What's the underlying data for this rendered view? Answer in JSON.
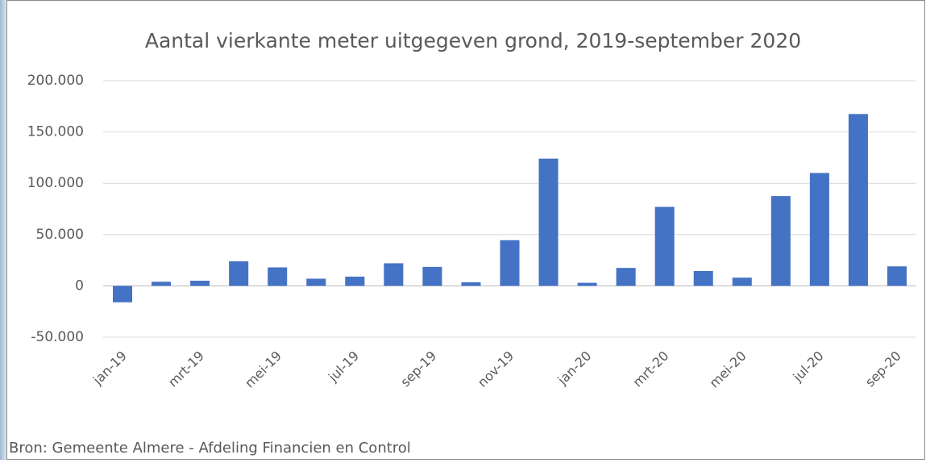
{
  "chart_data": {
    "type": "bar",
    "title": "Aantal vierkante meter uitgegeven grond, 2019-september 2020",
    "categories": [
      "jan-19",
      null,
      "mrt-19",
      null,
      "mei-19",
      null,
      "jul-19",
      null,
      "sep-19",
      null,
      "nov-19",
      null,
      "jan-20",
      null,
      "mrt-20",
      null,
      "mei-20",
      null,
      "jul-20",
      null,
      "sep-20"
    ],
    "values": [
      -16000,
      4000,
      5000,
      24000,
      18000,
      7000,
      9000,
      22000,
      18500,
      3500,
      44500,
      124000,
      3000,
      17500,
      77000,
      14500,
      8000,
      87500,
      110000,
      167500,
      19000
    ],
    "color": "#4472c4",
    "ylim": [
      -50000,
      200000
    ],
    "yticks": [
      {
        "value": -50000,
        "label": "-50.000"
      },
      0,
      {
        "value": 50000,
        "label": "50.000"
      },
      {
        "value": 100000,
        "label": "100.000"
      },
      {
        "value": 150000,
        "label": "150.000"
      },
      {
        "value": 200000,
        "label": "200.000"
      }
    ],
    "grid": true,
    "source": "Bron: Gemeente Almere - Afdeling Financien en Control"
  }
}
